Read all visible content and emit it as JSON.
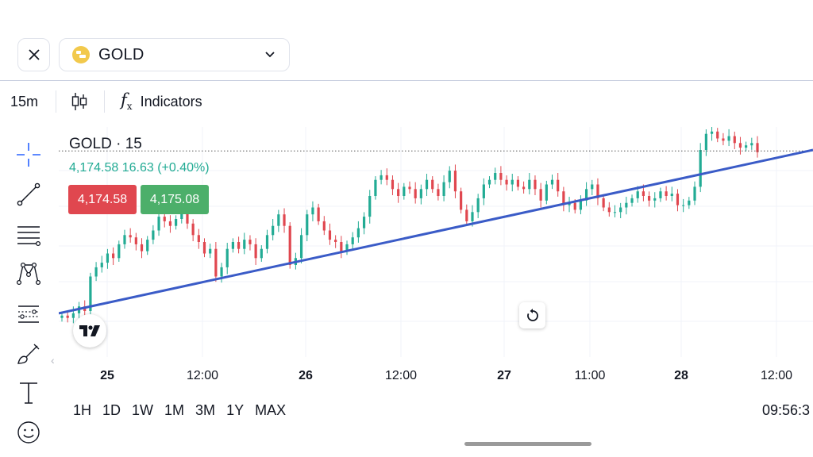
{
  "header": {
    "symbol": "GOLD",
    "close_icon": "close-icon",
    "dropdown_icon": "chevron-down-icon"
  },
  "toolbar": {
    "timeframe": "15m",
    "chart_type_icon": "candlestick-icon",
    "indicators_label": "Indicators",
    "indicators_icon": "fx-icon"
  },
  "drawing_tools": [
    {
      "name": "crosshair-icon"
    },
    {
      "name": "trend-line-icon"
    },
    {
      "name": "fib-retracement-icon"
    },
    {
      "name": "pattern-icon"
    },
    {
      "name": "measure-icon"
    },
    {
      "name": "brush-icon"
    },
    {
      "name": "text-icon"
    },
    {
      "name": "emoji-icon"
    }
  ],
  "legend": {
    "title": "GOLD · 15",
    "values": "4,174.58 16.63 (+0.40%)"
  },
  "quote": {
    "sell": "4,174.58",
    "buy": "4,175.08"
  },
  "ranges": [
    "1H",
    "1D",
    "1W",
    "1M",
    "3M",
    "1Y",
    "MAX"
  ],
  "clock": "09:56:3",
  "colors": {
    "up": "#22ab94",
    "down": "#e0474f",
    "trendline": "#3a5bc7",
    "sell_bg": "#e0474f",
    "buy_bg": "#4caf6a"
  },
  "chart_data": {
    "type": "candlestick",
    "xaxis_ticks": [
      {
        "label": "25",
        "bold": true
      },
      {
        "label": "12:00",
        "bold": false
      },
      {
        "label": "26",
        "bold": true
      },
      {
        "label": "12:00",
        "bold": false
      },
      {
        "label": "27",
        "bold": true
      },
      {
        "label": "11:00",
        "bold": false
      },
      {
        "label": "28",
        "bold": true
      },
      {
        "label": "12:00",
        "bold": false
      }
    ],
    "grid": true,
    "current_price": 4174.58,
    "ylim": [
      4085,
      4185
    ],
    "trendline": [
      [
        0,
        4104
      ],
      [
        1,
        4175
      ]
    ],
    "series": [
      {
        "values": [
          4103,
          4102,
          4104,
          4107,
          4105,
          4120,
          4124,
          4126,
          4130,
          4128,
          4134,
          4138,
          4137,
          4134,
          4131,
          4136,
          4140,
          4146,
          4144,
          4142,
          4145,
          4148,
          4143,
          4138,
          4135,
          4130,
          4132,
          4120,
          4124,
          4132,
          4135,
          4132,
          4136,
          4134,
          4128,
          4132,
          4138,
          4142,
          4147,
          4142,
          4125,
          4128,
          4138,
          4147,
          4150,
          4144,
          4140,
          4136,
          4135,
          4131,
          4134,
          4137,
          4141,
          4146,
          4155,
          4162,
          4164,
          4162,
          4158,
          4155,
          4159,
          4158,
          4154,
          4158,
          4162,
          4158,
          4155,
          4161,
          4166,
          4157,
          4149,
          4144,
          4148,
          4154,
          4160,
          4162,
          4165,
          4162,
          4160,
          4162,
          4159,
          4158,
          4162,
          4158,
          4153,
          4160,
          4162,
          4157,
          4151,
          4152,
          4149,
          4153,
          4158,
          4160,
          4154,
          4150,
          4148,
          4148,
          4150,
          4152,
          4154,
          4157,
          4155,
          4153,
          4154,
          4157,
          4155,
          4156,
          4151,
          4151,
          4153,
          4159,
          4175,
          4182,
          4183,
          4180,
          4179,
          4181,
          4178,
          4176,
          4177,
          4178,
          4174
        ]
      }
    ]
  }
}
